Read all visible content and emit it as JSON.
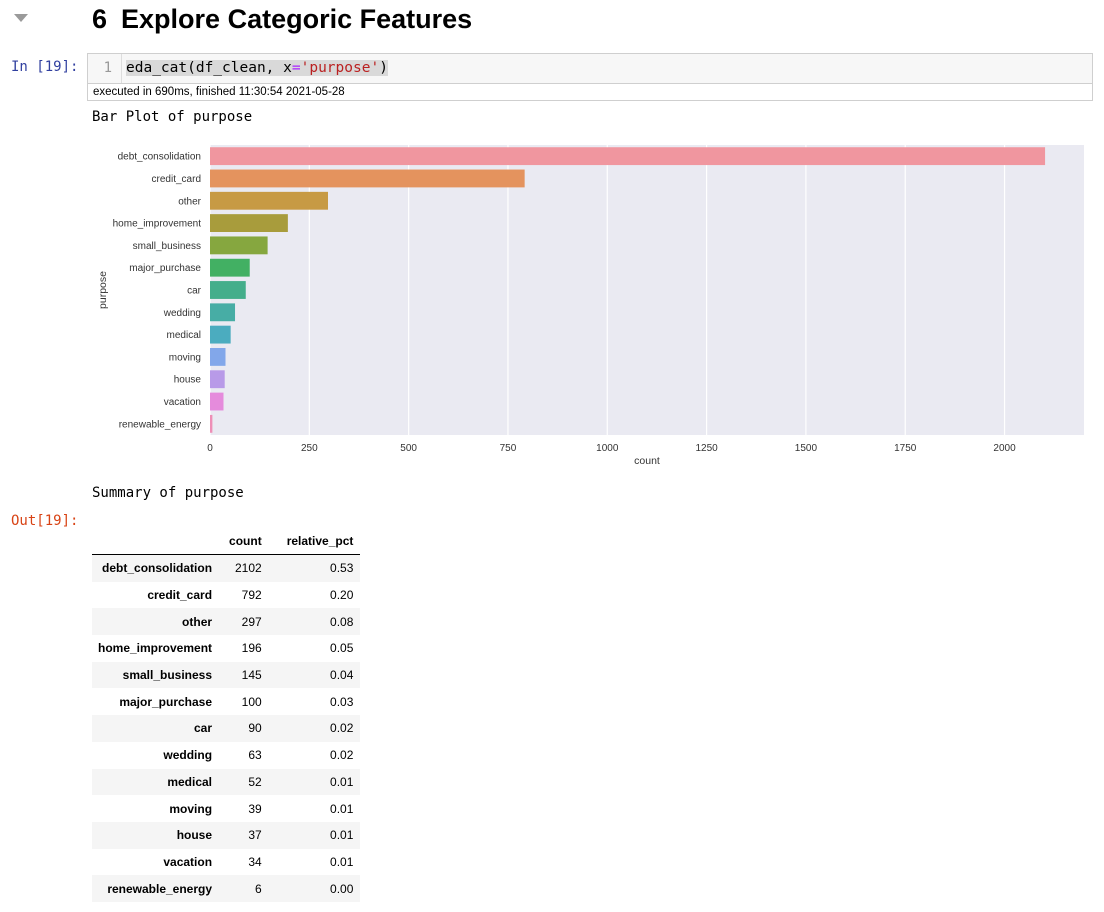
{
  "heading": {
    "number": "6",
    "title": "Explore Categoric Features"
  },
  "input_cell": {
    "prompt": "In [19]:",
    "line_number": "1",
    "code": {
      "fn": "eda_cat(df_clean, x",
      "op": "=",
      "str": "'purpose'",
      "end": ")"
    },
    "exec_info": "executed in 690ms, finished 11:30:54 2021-05-28"
  },
  "output": {
    "plot_title": "Bar Plot of purpose",
    "summary_title": "Summary of purpose",
    "prompt": "Out[19]:"
  },
  "chart_data": {
    "type": "bar",
    "orientation": "horizontal",
    "categories": [
      "debt_consolidation",
      "credit_card",
      "other",
      "home_improvement",
      "small_business",
      "major_purchase",
      "car",
      "wedding",
      "medical",
      "moving",
      "house",
      "vacation",
      "renewable_energy"
    ],
    "values": [
      2102,
      792,
      297,
      196,
      145,
      100,
      90,
      63,
      52,
      39,
      37,
      34,
      6
    ],
    "colors": [
      "#f0969f",
      "#e4935e",
      "#c79a44",
      "#a89c3c",
      "#86a73f",
      "#42b063",
      "#44ae8b",
      "#47ada5",
      "#4bacbf",
      "#82a7ea",
      "#b89ae8",
      "#e58bdc",
      "#ee8fb7"
    ],
    "xlabel": "count",
    "ylabel": "purpose",
    "xticks": [
      0,
      250,
      500,
      750,
      1000,
      1250,
      1500,
      1750,
      2000
    ],
    "xlim": [
      0,
      2200
    ],
    "grid": true,
    "background": "#eaeaf2"
  },
  "table": {
    "columns": [
      "count",
      "relative_pct"
    ],
    "rows": [
      {
        "label": "debt_consolidation",
        "count": "2102",
        "pct": "0.53"
      },
      {
        "label": "credit_card",
        "count": "792",
        "pct": "0.20"
      },
      {
        "label": "other",
        "count": "297",
        "pct": "0.08"
      },
      {
        "label": "home_improvement",
        "count": "196",
        "pct": "0.05"
      },
      {
        "label": "small_business",
        "count": "145",
        "pct": "0.04"
      },
      {
        "label": "major_purchase",
        "count": "100",
        "pct": "0.03"
      },
      {
        "label": "car",
        "count": "90",
        "pct": "0.02"
      },
      {
        "label": "wedding",
        "count": "63",
        "pct": "0.02"
      },
      {
        "label": "medical",
        "count": "52",
        "pct": "0.01"
      },
      {
        "label": "moving",
        "count": "39",
        "pct": "0.01"
      },
      {
        "label": "house",
        "count": "37",
        "pct": "0.01"
      },
      {
        "label": "vacation",
        "count": "34",
        "pct": "0.01"
      },
      {
        "label": "renewable_energy",
        "count": "6",
        "pct": "0.00"
      }
    ]
  }
}
